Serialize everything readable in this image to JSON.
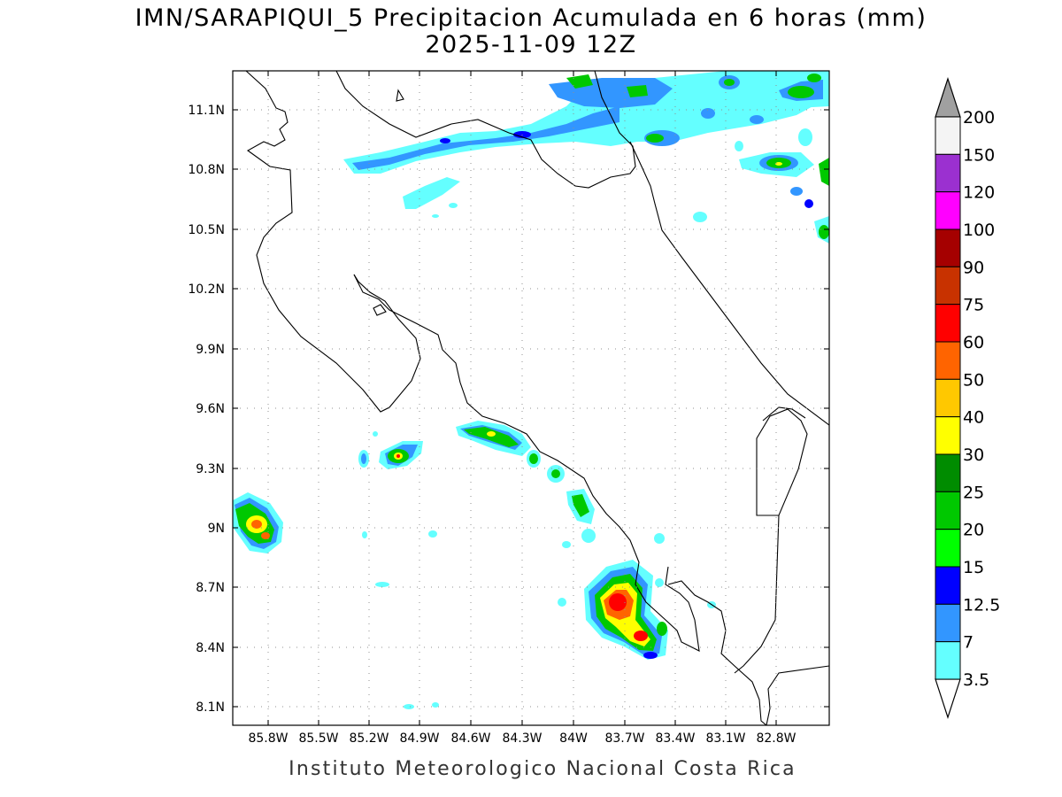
{
  "title_line1": "IMN/SARAPIQUI_5 Precipitacion Acumulada en 6 horas (mm)",
  "title_line2": "2025-11-09 12Z",
  "footer": "Instituto Meteorologico Nacional Costa Rica",
  "lat_ticks": [
    "11.1N",
    "10.8N",
    "10.5N",
    "10.2N",
    "9.9N",
    "9.6N",
    "9.3N",
    "9N",
    "8.7N",
    "8.4N",
    "8.1N"
  ],
  "lon_ticks": [
    "85.8W",
    "85.5W",
    "85.2W",
    "84.9W",
    "84.6W",
    "84.3W",
    "84W",
    "83.7W",
    "83.4W",
    "83.1W",
    "82.8W"
  ],
  "colorbar": {
    "labels": [
      "200",
      "150",
      "120",
      "100",
      "90",
      "75",
      "60",
      "50",
      "40",
      "30",
      "25",
      "20",
      "15",
      "12.5",
      "7",
      "3.5"
    ],
    "colors": [
      "#f4f4f4",
      "#9b30d0",
      "#ff00ff",
      "#a50000",
      "#c83200",
      "#ff0000",
      "#ff6400",
      "#ffc800",
      "#ffff00",
      "#008c00",
      "#00c800",
      "#00ff00",
      "#0000ff",
      "#3296ff",
      "#64ffff"
    ],
    "over_color": "#a0a0a0",
    "under_color": "#ffffff"
  },
  "grid": "dotted"
}
